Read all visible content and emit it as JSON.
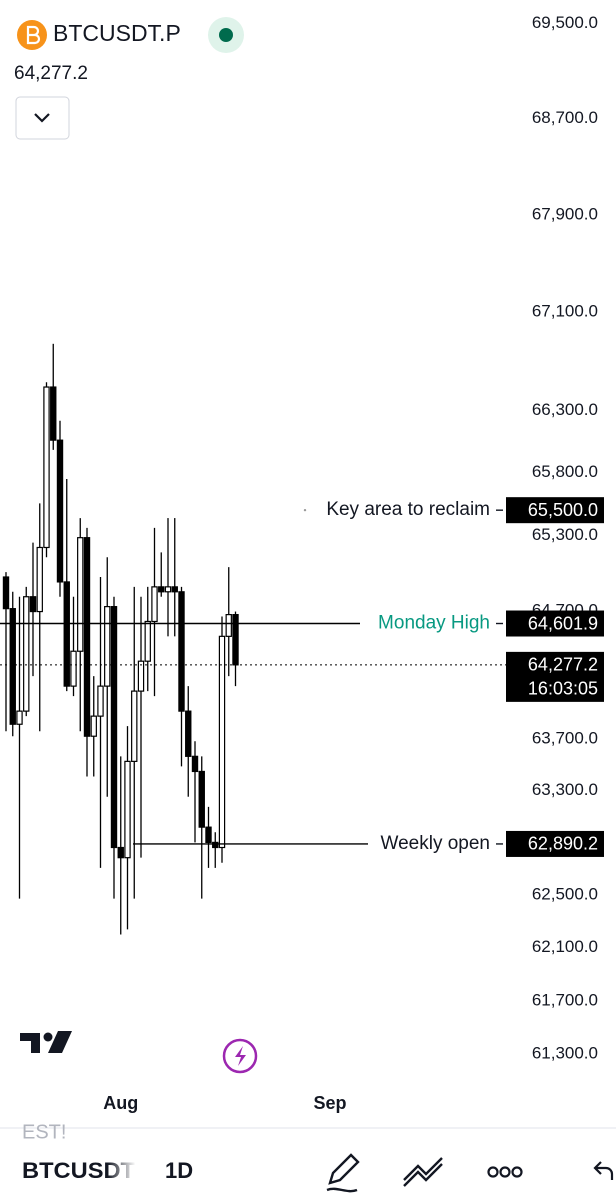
{
  "header": {
    "symbol": "BTCUSDT.P",
    "price": "64,277.2"
  },
  "chart_data": {
    "type": "candlestick",
    "log_scale": true,
    "x": [
      0,
      1,
      2,
      3,
      4,
      5,
      6,
      7,
      8,
      9,
      10,
      11,
      12,
      13,
      14,
      15,
      16,
      17,
      18,
      19,
      20,
      21,
      22,
      23,
      24,
      25,
      26,
      27,
      28,
      29,
      30,
      31,
      32,
      33,
      34
    ],
    "open": [
      64969,
      64719,
      63814,
      63916,
      64813,
      64696,
      65203,
      66490,
      66061,
      64930,
      64111,
      64384,
      65281,
      63721,
      63877,
      64111,
      64735,
      62863,
      62785,
      63526,
      64072,
      64306,
      64618,
      64891,
      64852,
      64891,
      64852,
      63916,
      63565,
      63448,
      63019,
      62902,
      62863,
      64501,
      64672
    ],
    "high": [
      65008,
      64852,
      64813,
      64891,
      65242,
      65554,
      66529,
      66841,
      66217,
      65749,
      64813,
      65437,
      65359,
      64189,
      64969,
      65125,
      64813,
      63565,
      63799,
      64891,
      64813,
      64891,
      65359,
      65164,
      65437,
      65437,
      64891,
      64111,
      63682,
      63565,
      63175,
      62980,
      64657,
      65047,
      64696
    ],
    "low": [
      63760,
      63721,
      62473,
      63877,
      64189,
      63760,
      65125,
      65983,
      64813,
      64072,
      64033,
      63760,
      63409,
      63409,
      62707,
      63253,
      62473,
      62200,
      62239,
      62473,
      62785,
      64072,
      64033,
      64813,
      64501,
      64501,
      63487,
      63253,
      62902,
      62473,
      62707,
      62707,
      62746,
      64189,
      64111
    ],
    "close": [
      64719,
      63814,
      63916,
      64813,
      64696,
      65203,
      66490,
      66061,
      64930,
      64111,
      64384,
      65281,
      63721,
      63877,
      64111,
      64735,
      62863,
      62785,
      63526,
      64072,
      64306,
      64618,
      64891,
      64852,
      64891,
      64852,
      63916,
      63565,
      63448,
      63019,
      62902,
      62863,
      64501,
      64672,
      64277.2
    ],
    "up_color": "#ffffff",
    "down_color": "#000000",
    "xlim": [
      0,
      90
    ],
    "xticks": [
      {
        "value": 17,
        "label": "Aug"
      },
      {
        "value": 48,
        "label": "Sep"
      }
    ],
    "ylim": [
      61100,
      69700
    ],
    "yticks": [
      {
        "value": 69500,
        "label": "69,500.0"
      },
      {
        "value": 68700,
        "label": "68,700.0"
      },
      {
        "value": 67900,
        "label": "67,900.0"
      },
      {
        "value": 67100,
        "label": "67,100.0"
      },
      {
        "value": 66300,
        "label": "66,300.0"
      },
      {
        "value": 65800,
        "label": "65,800.0"
      },
      {
        "value": 65300,
        "label": "65,300.0"
      },
      {
        "value": 64700,
        "label": "64,700.0"
      },
      {
        "value": 63700,
        "label": "63,700.0"
      },
      {
        "value": 63300,
        "label": "63,300.0"
      },
      {
        "value": 62500,
        "label": "62,500.0"
      },
      {
        "value": 62100,
        "label": "62,100.0"
      },
      {
        "value": 61700,
        "label": "61,700.0"
      },
      {
        "value": 61300,
        "label": "61,300.0"
      }
    ],
    "levels": [
      {
        "name": "Key area to reclaim",
        "value": 65500,
        "label": "65,500.0",
        "color": "#131722"
      },
      {
        "name": "Monday High",
        "value": 64601.9,
        "label": "64,601.9",
        "color": "#089981"
      },
      {
        "name": "Weekly open",
        "value": 62890.2,
        "label": "62,890.2",
        "color": "#131722"
      }
    ],
    "last_price": {
      "value": 64277.2,
      "label": "64,277.2",
      "countdown": "16:03:05"
    }
  },
  "banner": "EST!",
  "toolbar": {
    "symbol": "BTCUSDT",
    "interval": "1D"
  }
}
